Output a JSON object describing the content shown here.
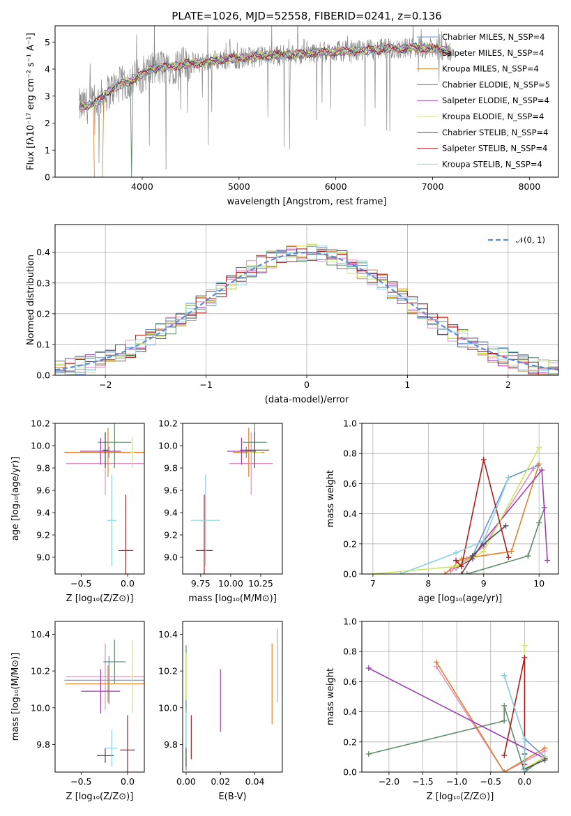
{
  "colors": {
    "chabrier_miles": "#6a8fd4",
    "salpeter_miles": "#e88fbe",
    "kroupa_miles": "#e0822e",
    "chabrier_elodie": "#5f8c6a",
    "salpeter_elodie": "#a23cb8",
    "kroupa_elodie": "#cde85c",
    "chabrier_stelib": "#4a4a4a",
    "salpeter_stelib": "#b11a1a",
    "kroupa_stelib": "#8ad2dc",
    "data_grey": "#8a8a8a",
    "gaussian": "#5b8ad8"
  },
  "chart_data": [
    {
      "type": "line",
      "title": "PLATE=1026, MJD=52558, FIBERID=0241, z=0.136",
      "xlabel": "wavelength [Angstrom, rest frame]",
      "ylabel": "Flux [fλ10⁻¹⁷ erg cm⁻² s⁻¹ A⁻¹]",
      "xlim": [
        3100,
        8300
      ],
      "ylim": [
        0,
        5.6
      ],
      "xticks": [
        "4000",
        "5000",
        "6000",
        "7000",
        "8000"
      ],
      "yticks": [
        "0",
        "1",
        "2",
        "3",
        "4",
        "5"
      ],
      "legend_position": "top-right",
      "legend": [
        "Chabrier MILES, N_SSP=4",
        "Salpeter MILES, N_SSP=4",
        "Kroupa MILES, N_SSP=4",
        "Chabrier ELODIE, N_SSP=5",
        "Salpeter ELODIE, N_SSP=4",
        "Kroupa ELODIE, N_SSP=4",
        "Chabrier STELIB, N_SSP=4",
        "Salpeter STELIB, N_SSP=4",
        "Kroupa STELIB, N_SSP=4"
      ],
      "continuum_x": [
        3350,
        3500,
        3700,
        3950,
        4100,
        4300,
        4500,
        4800,
        5000,
        5300,
        5600,
        6000,
        6300,
        6600,
        6900,
        7200
      ],
      "continuum_y": [
        2.6,
        2.7,
        3.3,
        3.7,
        4.0,
        4.1,
        4.2,
        4.35,
        4.4,
        4.5,
        4.55,
        4.65,
        4.7,
        4.75,
        4.8,
        4.65
      ]
    },
    {
      "type": "histogram",
      "xlabel": "(data-model)/error",
      "ylabel": "Normed distribution",
      "xlim": [
        -2.5,
        2.5
      ],
      "ylim": [
        0,
        0.49
      ],
      "xticks": [
        "−2",
        "−1",
        "0",
        "1",
        "2"
      ],
      "yticks": [
        "0.0",
        "0.1",
        "0.2",
        "0.3",
        "0.4"
      ],
      "grid": true,
      "legend_position": "top-right",
      "gaussian_label": "𝒩(0, 1)",
      "bin_width": 0.1,
      "bins_start": -2.5
    },
    {
      "type": "scatter",
      "xlabel": "Z [log₁₀(Z/Z⊙)]",
      "ylabel": "age  [log₁₀(age/yr)]",
      "xlim": [
        -0.78,
        0.18
      ],
      "ylim": [
        8.85,
        10.2
      ],
      "xticks": [
        "−0.5",
        "0.0"
      ],
      "yticks": [
        "9.0",
        "9.2",
        "9.4",
        "9.6",
        "9.8",
        "10.0",
        "10.2"
      ],
      "points": [
        {
          "x": -0.2,
          "y": 9.94,
          "xerr": 0.48,
          "yerr": 0.05
        },
        {
          "x": -0.24,
          "y": 9.84,
          "xerr": 0.42,
          "yerr": 0.28
        },
        {
          "x": -0.21,
          "y": 9.94,
          "xerr": 0.46,
          "yerr": 0.22
        },
        {
          "x": -0.14,
          "y": 10.03,
          "xerr": 0.18,
          "yerr": 0.23
        },
        {
          "x": -0.29,
          "y": 9.95,
          "xerr": 0.22,
          "yerr": 0.12
        },
        {
          "x": 0.05,
          "y": 9.94,
          "xerr": 0.02,
          "yerr": 0.14
        },
        {
          "x": -0.24,
          "y": 9.96,
          "xerr": 0.03,
          "yerr": 0.16
        },
        {
          "x": -0.02,
          "y": 9.06,
          "xerr": 0.08,
          "yerr": 0.5
        },
        {
          "x": -0.17,
          "y": 9.33,
          "xerr": 0.05,
          "yerr": 0.41
        }
      ]
    },
    {
      "type": "scatter",
      "xlabel": "mass [log₁₀(M/M⊙)]",
      "ylabel": "",
      "xlim": [
        9.6,
        10.43
      ],
      "ylim": [
        8.85,
        10.2
      ],
      "xticks": [
        "9.75",
        "10.00",
        "10.25"
      ],
      "yticks": [
        "9.0",
        "9.2",
        "9.4",
        "9.6",
        "9.8",
        "10.0",
        "10.2"
      ],
      "points": [
        {
          "x": 10.13,
          "y": 9.94,
          "xerr": 0.08,
          "yerr": 0.05
        },
        {
          "x": 10.17,
          "y": 9.84,
          "xerr": 0.18,
          "yerr": 0.28
        },
        {
          "x": 10.15,
          "y": 9.94,
          "xerr": 0.13,
          "yerr": 0.22
        },
        {
          "x": 10.2,
          "y": 10.03,
          "xerr": 0.1,
          "yerr": 0.23
        },
        {
          "x": 10.09,
          "y": 9.95,
          "xerr": 0.12,
          "yerr": 0.12
        },
        {
          "x": 10.2,
          "y": 9.94,
          "xerr": 0.06,
          "yerr": 0.14
        },
        {
          "x": 10.2,
          "y": 9.96,
          "xerr": 0.12,
          "yerr": 0.16
        },
        {
          "x": 9.78,
          "y": 9.06,
          "xerr": 0.07,
          "yerr": 0.5
        },
        {
          "x": 9.79,
          "y": 9.33,
          "xerr": 0.12,
          "yerr": 0.41
        }
      ]
    },
    {
      "type": "line",
      "xlabel": "age  [log₁₀(age/yr)]",
      "ylabel": "mass weight",
      "xlim": [
        6.8,
        10.35
      ],
      "ylim": [
        0,
        1.0
      ],
      "xticks": [
        "7",
        "8",
        "9",
        "10"
      ],
      "yticks": [
        "0.0",
        "0.2",
        "0.4",
        "0.6",
        "0.8",
        "1.0"
      ],
      "grid": true,
      "series": [
        {
          "x": [
            8.4,
            8.8,
            9.45,
            9.98
          ],
          "y": [
            0.02,
            0.12,
            0.64,
            0.72
          ]
        },
        {
          "x": [
            8.4,
            8.7,
            9.0,
            9.9
          ],
          "y": [
            0.02,
            0.1,
            0.18,
            0.7
          ]
        },
        {
          "x": [
            8.3,
            8.6,
            9.5,
            10.0
          ],
          "y": [
            0.0,
            0.1,
            0.15,
            0.73
          ]
        },
        {
          "x": [
            8.7,
            9.8,
            10.0,
            10.1
          ],
          "y": [
            0.0,
            0.12,
            0.34,
            0.44
          ]
        },
        {
          "x": [
            8.5,
            8.8,
            9.0,
            10.05,
            10.15
          ],
          "y": [
            0.04,
            0.1,
            0.22,
            0.69,
            0.09
          ]
        },
        {
          "x": [
            7.0,
            8.5,
            9.0,
            10.0
          ],
          "y": [
            0.0,
            0.05,
            0.15,
            0.84
          ]
        },
        {
          "x": [
            8.6,
            8.8,
            9.0,
            9.4
          ],
          "y": [
            0.0,
            0.12,
            0.2,
            0.32
          ]
        },
        {
          "x": [
            8.5,
            8.6,
            9.0,
            9.45
          ],
          "y": [
            0.09,
            0.05,
            0.76,
            0.11
          ]
        },
        {
          "x": [
            7.5,
            8.5,
            9.0,
            9.45
          ],
          "y": [
            0.0,
            0.14,
            0.22,
            0.64
          ]
        }
      ]
    },
    {
      "type": "scatter",
      "xlabel": "Z [log₁₀(Z/Z⊙)]",
      "ylabel": "mass [log₁₀(M/M⊙)]",
      "xlim": [
        -0.78,
        0.18
      ],
      "ylim": [
        9.65,
        10.47
      ],
      "xticks": [
        "−0.5",
        "0.0"
      ],
      "yticks": [
        "9.8",
        "10.0",
        "10.2",
        "10.4"
      ],
      "points": [
        {
          "x": -0.2,
          "y": 10.15,
          "xerr": 0.48,
          "yerr": 0.13
        },
        {
          "x": -0.24,
          "y": 10.17,
          "xerr": 0.42,
          "yerr": 0.18
        },
        {
          "x": -0.21,
          "y": 10.13,
          "xerr": 0.46,
          "yerr": 0.1
        },
        {
          "x": -0.14,
          "y": 10.25,
          "xerr": 0.12,
          "yerr": 0.12
        },
        {
          "x": -0.29,
          "y": 10.09,
          "xerr": 0.21,
          "yerr": 0.12
        },
        {
          "x": 0.05,
          "y": 10.17,
          "xerr": 0.02,
          "yerr": 0.2
        },
        {
          "x": -0.24,
          "y": 9.74,
          "xerr": 0.09,
          "yerr": 0.04
        },
        {
          "x": 0.0,
          "y": 9.77,
          "xerr": 0.08,
          "yerr": 0.19
        },
        {
          "x": -0.17,
          "y": 9.78,
          "xerr": 0.06,
          "yerr": 0.1
        }
      ]
    },
    {
      "type": "scatter",
      "xlabel": "E(B-V)",
      "ylabel": "",
      "xlim": [
        -0.002,
        0.056
      ],
      "ylim": [
        9.65,
        10.47
      ],
      "xticks": [
        "0.00",
        "0.02",
        "0.04"
      ],
      "yticks": [
        "9.8",
        "10.0",
        "10.2",
        "10.4"
      ],
      "points": [
        {
          "x": 0.0,
          "y": 10.15,
          "xerr": 0.0,
          "yerr": 0.15
        },
        {
          "x": 0.053,
          "y": 10.23,
          "xerr": 0.0,
          "yerr": 0.2
        },
        {
          "x": 0.05,
          "y": 10.13,
          "xerr": 0.0,
          "yerr": 0.22
        },
        {
          "x": 0.0,
          "y": 10.0,
          "xerr": 0.0,
          "yerr": 0.34
        },
        {
          "x": 0.02,
          "y": 10.04,
          "xerr": 0.0,
          "yerr": 0.17
        },
        {
          "x": 0.0,
          "y": 10.17,
          "xerr": 0.0,
          "yerr": 0.13
        },
        {
          "x": 0.0,
          "y": 9.74,
          "xerr": 0.0,
          "yerr": 0.06
        },
        {
          "x": 0.003,
          "y": 9.84,
          "xerr": 0.0,
          "yerr": 0.12
        },
        {
          "x": 0.0,
          "y": 9.88,
          "xerr": 0.0,
          "yerr": 0.1
        }
      ]
    },
    {
      "type": "line",
      "xlabel": "Z [log₁₀(Z/Z⊙)]",
      "ylabel": "mass weight",
      "xlim": [
        -2.4,
        0.5
      ],
      "ylim": [
        0,
        1.0
      ],
      "xticks": [
        "−2.0",
        "−1.5",
        "−1.0",
        "−0.5",
        "0.0"
      ],
      "yticks": [
        "0.0",
        "0.2",
        "0.4",
        "0.6",
        "0.8",
        "1.0"
      ],
      "grid": true,
      "series": [
        {
          "x": [
            -0.3,
            0.0,
            0.3
          ],
          "y": [
            0.64,
            0.22,
            0.1
          ]
        },
        {
          "x": [
            -1.3,
            -0.3,
            0.3
          ],
          "y": [
            0.7,
            0.0,
            0.14
          ]
        },
        {
          "x": [
            -1.3,
            -0.3,
            0.3
          ],
          "y": [
            0.73,
            0.0,
            0.16
          ]
        },
        {
          "x": [
            -2.3,
            -0.3,
            -0.3,
            0.0,
            0.3
          ],
          "y": [
            0.12,
            0.34,
            0.44,
            0.0,
            0.1
          ]
        },
        {
          "x": [
            -2.3,
            0.3
          ],
          "y": [
            0.69,
            0.09
          ]
        },
        {
          "x": [
            0.0,
            0.0,
            0.3
          ],
          "y": [
            0.84,
            0.02,
            0.1
          ]
        },
        {
          "x": [
            0.0,
            0.0,
            0.3
          ],
          "y": [
            0.12,
            0.02,
            0.08
          ]
        },
        {
          "x": [
            -0.3,
            0.0,
            0.0
          ],
          "y": [
            0.11,
            0.76,
            0.05
          ]
        },
        {
          "x": [
            -0.3,
            0.0,
            0.0
          ],
          "y": [
            0.64,
            0.22,
            0.0
          ]
        }
      ]
    }
  ]
}
